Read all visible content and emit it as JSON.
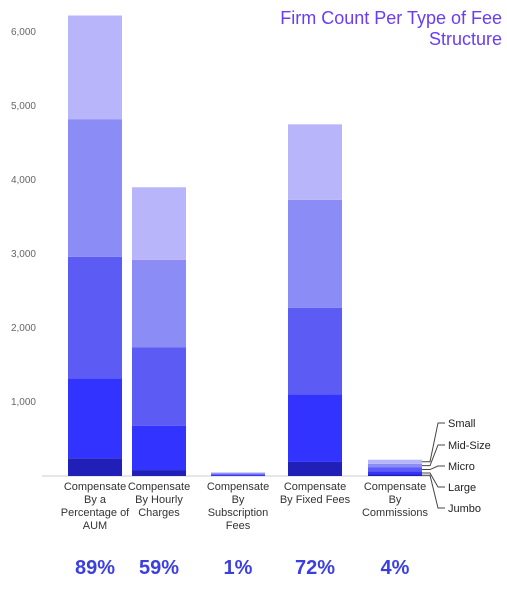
{
  "chart_data": {
    "type": "bar",
    "stacked": true,
    "title": "Firm Count Per Type of Fee Structure",
    "categories": [
      [
        "Compensate",
        "By a",
        "Percentage of",
        "AUM"
      ],
      [
        "Compensate",
        "By Hourly",
        "Charges"
      ],
      [
        "Compensate",
        "By",
        "Subscription",
        "Fees"
      ],
      [
        "Compensate",
        "By Fixed Fees"
      ],
      [
        "Compensate",
        "By",
        "Commissions"
      ]
    ],
    "series": [
      {
        "name": "Jumbo",
        "color": "#2020b8",
        "values": [
          240,
          80,
          5,
          190,
          20
        ]
      },
      {
        "name": "Large",
        "color": "#3333ff",
        "values": [
          1080,
          600,
          10,
          910,
          40
        ]
      },
      {
        "name": "Micro",
        "color": "#5c5cf5",
        "values": [
          1640,
          1060,
          15,
          1170,
          55
        ]
      },
      {
        "name": "Mid-Size",
        "color": "#8c8cf7",
        "values": [
          1860,
          1180,
          12,
          1460,
          50
        ]
      },
      {
        "name": "Small",
        "color": "#b9b5fb",
        "values": [
          1400,
          980,
          8,
          1020,
          55
        ]
      }
    ],
    "legend_order": [
      "Small",
      "Mid-Size",
      "Micro",
      "Large",
      "Jumbo"
    ],
    "legend_placement": "right",
    "ylim": [
      0,
      6200
    ],
    "yticks": [
      1000,
      2000,
      3000,
      4000,
      5000,
      6000
    ],
    "ytick_labels": [
      "1,000",
      "2,000",
      "3,000",
      "4,000",
      "5,000",
      "6,000"
    ],
    "percentages": [
      "89%",
      "59%",
      "1%",
      "72%",
      "4%"
    ],
    "grid": false,
    "accent_color": "#6a3df2",
    "percent_color": "#3b3fe0"
  }
}
